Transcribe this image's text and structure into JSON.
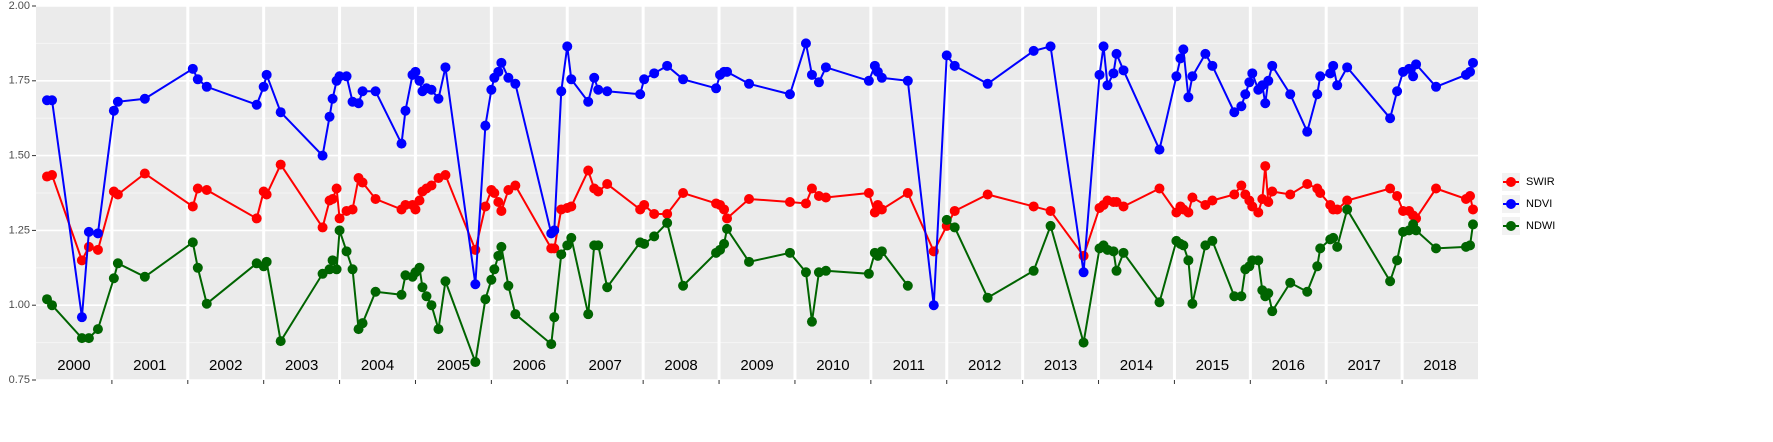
{
  "chart_data": {
    "type": "line",
    "xlim": [
      2000,
      2019
    ],
    "ylim": [
      0.75,
      2.0
    ],
    "yticks": [
      {
        "value": 0.75,
        "label": "0.75"
      },
      {
        "value": 1.0,
        "label": "1.00"
      },
      {
        "value": 1.25,
        "label": "1.25"
      },
      {
        "value": 1.5,
        "label": "1.50"
      },
      {
        "value": 1.75,
        "label": "1.75"
      },
      {
        "value": 2.0,
        "label": "2.00"
      }
    ],
    "xticks": [
      {
        "value": 2000.5,
        "label": "2000"
      },
      {
        "value": 2001.5,
        "label": "2001"
      },
      {
        "value": 2002.5,
        "label": "2002"
      },
      {
        "value": 2003.5,
        "label": "2003"
      },
      {
        "value": 2004.5,
        "label": "2004"
      },
      {
        "value": 2005.5,
        "label": "2005"
      },
      {
        "value": 2006.5,
        "label": "2006"
      },
      {
        "value": 2007.5,
        "label": "2007"
      },
      {
        "value": 2008.5,
        "label": "2008"
      },
      {
        "value": 2009.5,
        "label": "2009"
      },
      {
        "value": 2010.5,
        "label": "2010"
      },
      {
        "value": 2011.5,
        "label": "2011"
      },
      {
        "value": 2012.5,
        "label": "2012"
      },
      {
        "value": 2013.5,
        "label": "2013"
      },
      {
        "value": 2014.5,
        "label": "2014"
      },
      {
        "value": 2015.5,
        "label": "2015"
      },
      {
        "value": 2016.5,
        "label": "2016"
      },
      {
        "value": 2017.5,
        "label": "2017"
      },
      {
        "value": 2018.5,
        "label": "2018"
      }
    ],
    "x_boundaries": [
      2001,
      2002,
      2003,
      2004,
      2005,
      2006,
      2007,
      2008,
      2009,
      2010,
      2011,
      2012,
      2013,
      2014,
      2015,
      2016,
      2017,
      2018
    ],
    "grid": true,
    "legend": "right",
    "x": [
      2000.145,
      2000.211,
      2000.605,
      2000.697,
      2000.816,
      2001.026,
      2001.079,
      2001.434,
      2002.066,
      2002.132,
      2002.25,
      2002.908,
      2003,
      2003.039,
      2003.224,
      2003.776,
      2003.868,
      2003.908,
      2003.961,
      2004,
      2004.092,
      2004.171,
      2004.25,
      2004.303,
      2004.474,
      2004.816,
      2004.868,
      2004.961,
      2005,
      2005.053,
      2005.092,
      2005.145,
      2005.211,
      2005.303,
      2005.395,
      2005.789,
      2005.921,
      2006,
      2006.039,
      2006.092,
      2006.132,
      2006.224,
      2006.316,
      2006.789,
      2006.829,
      2006.921,
      2007,
      2007.053,
      2007.276,
      2007.355,
      2007.408,
      2007.526,
      2007.961,
      2008.013,
      2008.145,
      2008.316,
      2008.526,
      2008.961,
      2009.013,
      2009.066,
      2009.105,
      2009.395,
      2009.934,
      2010.145,
      2010.224,
      2010.316,
      2010.408,
      2010.974,
      2011.053,
      2011.092,
      2011.145,
      2011.487,
      2011.829,
      2012,
      2012.105,
      2012.539,
      2013.145,
      2013.368,
      2013.803,
      2014.013,
      2014.066,
      2014.118,
      2014.197,
      2014.237,
      2014.329,
      2014.803,
      2015.026,
      2015.079,
      2015.118,
      2015.184,
      2015.237,
      2015.408,
      2015.5,
      2015.789,
      2015.882,
      2015.934,
      2015.987,
      2016.026,
      2016.105,
      2016.158,
      2016.197,
      2016.237,
      2016.289,
      2016.526,
      2016.75,
      2016.882,
      2016.921,
      2017.053,
      2017.092,
      2017.145,
      2017.276,
      2017.842,
      2017.934,
      2018.013,
      2018.092,
      2018.145,
      2018.184,
      2018.447,
      2018.842,
      2018.895,
      2018.934
    ],
    "series": [
      {
        "name": "SWIR",
        "color": "#ff0000",
        "values": [
          1.43,
          1.435,
          1.15,
          1.195,
          1.185,
          1.38,
          1.37,
          1.44,
          1.33,
          1.39,
          1.385,
          1.29,
          1.38,
          1.37,
          1.47,
          1.26,
          1.35,
          1.355,
          1.39,
          1.29,
          1.315,
          1.32,
          1.425,
          1.41,
          1.355,
          1.32,
          1.335,
          1.335,
          1.32,
          1.35,
          1.38,
          1.39,
          1.4,
          1.425,
          1.435,
          1.185,
          1.33,
          1.385,
          1.375,
          1.345,
          1.315,
          1.385,
          1.4,
          1.19,
          1.19,
          1.32,
          1.325,
          1.33,
          1.45,
          1.39,
          1.38,
          1.405,
          1.32,
          1.335,
          1.305,
          1.305,
          1.375,
          1.34,
          1.335,
          1.32,
          1.29,
          1.355,
          1.345,
          1.34,
          1.39,
          1.365,
          1.36,
          1.375,
          1.31,
          1.335,
          1.32,
          1.375,
          1.18,
          1.265,
          1.315,
          1.37,
          1.33,
          1.315,
          1.165,
          1.325,
          1.335,
          1.35,
          1.345,
          1.345,
          1.33,
          1.39,
          1.31,
          1.33,
          1.32,
          1.31,
          1.36,
          1.335,
          1.35,
          1.37,
          1.4,
          1.37,
          1.35,
          1.33,
          1.31,
          1.355,
          1.465,
          1.345,
          1.38,
          1.37,
          1.405,
          1.39,
          1.375,
          1.335,
          1.32,
          1.32,
          1.35,
          1.39,
          1.365,
          1.315,
          1.315,
          1.3,
          1.29,
          1.39,
          1.355,
          1.365,
          1.32
        ]
      },
      {
        "name": "NDVI",
        "color": "#0000ff",
        "values": [
          1.685,
          1.685,
          0.96,
          1.245,
          1.24,
          1.65,
          1.68,
          1.69,
          1.79,
          1.755,
          1.73,
          1.67,
          1.73,
          1.77,
          1.645,
          1.5,
          1.63,
          1.69,
          1.75,
          1.765,
          1.765,
          1.68,
          1.675,
          1.715,
          1.715,
          1.54,
          1.65,
          1.77,
          1.78,
          1.75,
          1.715,
          1.725,
          1.72,
          1.69,
          1.795,
          1.07,
          1.6,
          1.72,
          1.76,
          1.78,
          1.81,
          1.76,
          1.74,
          1.24,
          1.25,
          1.715,
          1.865,
          1.755,
          1.68,
          1.76,
          1.72,
          1.715,
          1.705,
          1.755,
          1.775,
          1.8,
          1.755,
          1.725,
          1.77,
          1.78,
          1.78,
          1.74,
          1.705,
          1.875,
          1.77,
          1.745,
          1.795,
          1.75,
          1.8,
          1.78,
          1.76,
          1.75,
          1.0,
          1.835,
          1.8,
          1.74,
          1.85,
          1.865,
          1.11,
          1.77,
          1.865,
          1.735,
          1.775,
          1.84,
          1.785,
          1.52,
          1.765,
          1.825,
          1.855,
          1.695,
          1.765,
          1.84,
          1.8,
          1.645,
          1.665,
          1.705,
          1.745,
          1.775,
          1.72,
          1.735,
          1.675,
          1.75,
          1.8,
          1.705,
          1.58,
          1.705,
          1.765,
          1.775,
          1.8,
          1.735,
          1.795,
          1.625,
          1.715,
          1.78,
          1.79,
          1.765,
          1.805,
          1.73,
          1.77,
          1.78,
          1.81
        ]
      },
      {
        "name": "NDWI",
        "color": "#006400",
        "values": [
          1.02,
          1.0,
          0.89,
          0.89,
          0.92,
          1.09,
          1.14,
          1.095,
          1.21,
          1.125,
          1.005,
          1.14,
          1.13,
          1.145,
          0.88,
          1.105,
          1.12,
          1.15,
          1.12,
          1.25,
          1.18,
          1.12,
          0.92,
          0.94,
          1.045,
          1.035,
          1.1,
          1.095,
          1.11,
          1.125,
          1.06,
          1.03,
          1.0,
          0.92,
          1.08,
          0.81,
          1.02,
          1.085,
          1.12,
          1.165,
          1.195,
          1.065,
          0.97,
          0.87,
          0.96,
          1.17,
          1.2,
          1.225,
          0.97,
          1.2,
          1.2,
          1.06,
          1.21,
          1.205,
          1.23,
          1.275,
          1.065,
          1.175,
          1.185,
          1.205,
          1.255,
          1.145,
          1.175,
          1.11,
          0.945,
          1.11,
          1.115,
          1.105,
          1.175,
          1.165,
          1.18,
          1.065,
          null,
          1.285,
          1.26,
          1.025,
          1.115,
          1.265,
          0.875,
          1.19,
          1.2,
          1.185,
          1.18,
          1.115,
          1.175,
          1.01,
          1.215,
          1.205,
          1.2,
          1.15,
          1.005,
          1.2,
          1.215,
          1.03,
          1.03,
          1.12,
          1.13,
          1.15,
          1.15,
          1.05,
          1.03,
          1.04,
          0.98,
          1.075,
          1.045,
          1.13,
          1.19,
          1.22,
          1.225,
          1.195,
          1.32,
          1.08,
          1.15,
          1.245,
          1.25,
          1.27,
          1.25,
          1.19,
          1.195,
          1.2,
          1.27
        ]
      }
    ]
  }
}
